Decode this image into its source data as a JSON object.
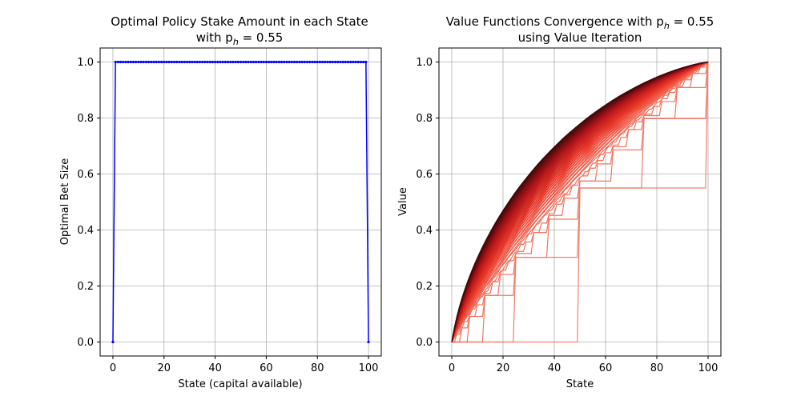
{
  "chart_data": [
    {
      "type": "line",
      "title_line1": "Optimal Policy Stake Amount in each State",
      "title_line2": "with $p_h = 0.55$",
      "title_line2_display": "with p",
      "subscript_symbol": "h",
      "title_line2_value": " = 0.55",
      "xlabel": "State (capital available)",
      "ylabel": "Optimal Bet Size",
      "xlim": [
        -5,
        105
      ],
      "ylim": [
        -0.05,
        1.05
      ],
      "xticks": [
        0,
        20,
        40,
        60,
        80,
        100
      ],
      "yticks": [
        0.0,
        0.2,
        0.4,
        0.6,
        0.8,
        1.0
      ],
      "xtick_labels": [
        "0",
        "20",
        "40",
        "60",
        "80",
        "100"
      ],
      "ytick_labels": [
        "0.0",
        "0.2",
        "0.4",
        "0.6",
        "0.8",
        "1.0"
      ],
      "grid": true,
      "color": "#0000ff",
      "series": [
        {
          "x_start": 0,
          "x_end": 100,
          "step": 1,
          "value_at_ends": 0,
          "value_interior": 1
        }
      ]
    },
    {
      "type": "line",
      "title_line1": "Value Functions Convergence with $p_h = 0.55$",
      "title_line1_display": "Value Functions Convergence with p",
      "subscript_symbol": "h",
      "title_line1_value": " = 0.55",
      "title_line2": "using Value Iteration",
      "xlabel": "State",
      "ylabel": "Value",
      "xlim": [
        -5,
        105
      ],
      "ylim": [
        -0.05,
        1.05
      ],
      "xticks": [
        0,
        20,
        40,
        60,
        80,
        100
      ],
      "yticks": [
        0.0,
        0.2,
        0.4,
        0.6,
        0.8,
        1.0
      ],
      "xtick_labels": [
        "0",
        "20",
        "40",
        "60",
        "80",
        "100"
      ],
      "ytick_labels": [
        "0.0",
        "0.2",
        "0.4",
        "0.6",
        "0.8",
        "1.0"
      ],
      "grid": true,
      "colormap": "Reds",
      "p_h": 0.55,
      "iterations": 60,
      "final_color": "#3d0a0a",
      "first_color": "#f4806a"
    }
  ]
}
